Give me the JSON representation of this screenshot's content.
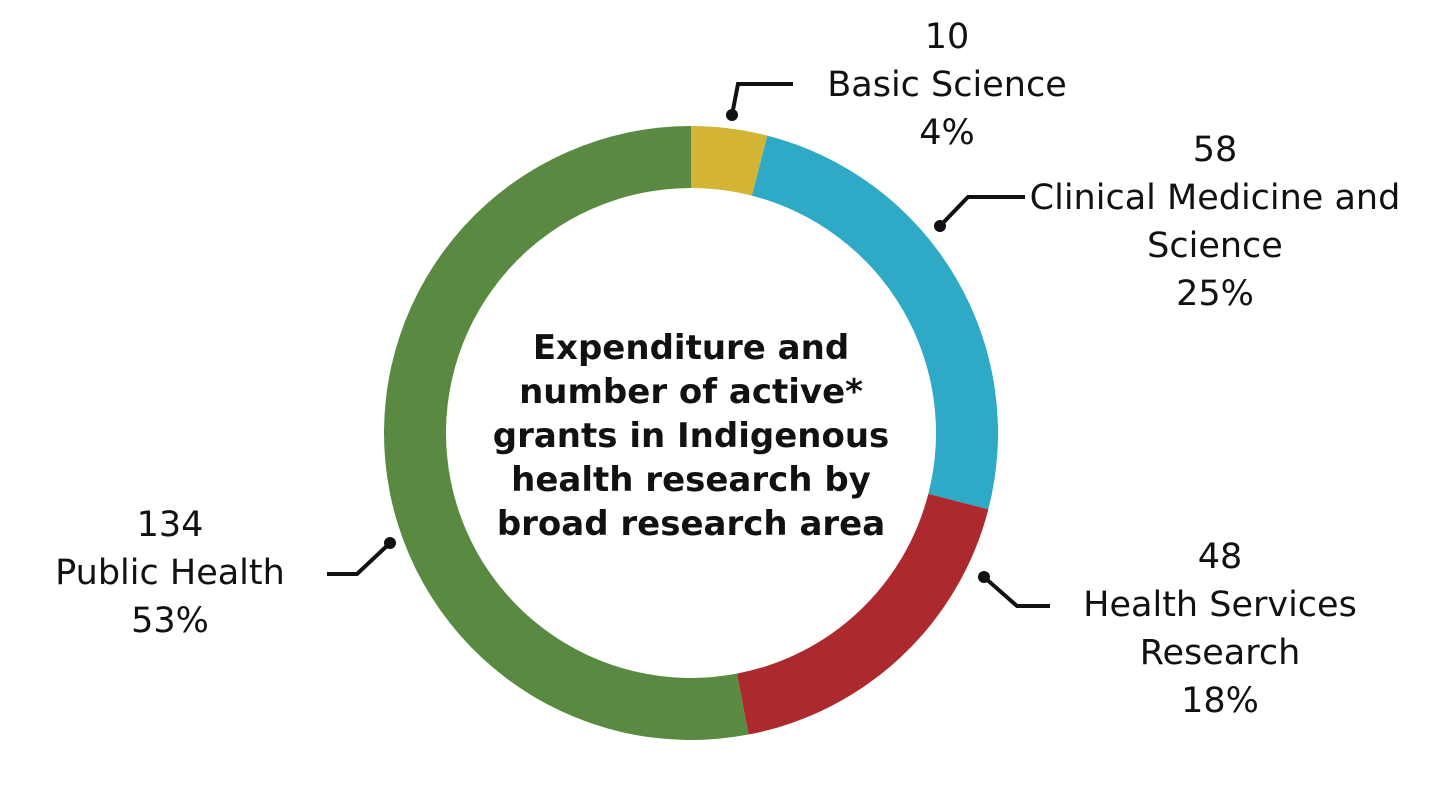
{
  "chart_data": {
    "type": "donut",
    "title": "Expenditure and number of active* grants in Indigenous health research by broad research area",
    "categories": [
      "Basic Science",
      "Clinical Medicine and Science",
      "Health Services Research",
      "Public Health"
    ],
    "values": [
      4,
      25,
      18,
      53
    ],
    "value_labels": [
      "4%",
      "25%",
      "18%",
      "53%"
    ],
    "counts": [
      10,
      58,
      48,
      134
    ],
    "colors": [
      "#d4b434",
      "#2eaac6",
      "#ac2a2d",
      "#5a8a42"
    ]
  }
}
